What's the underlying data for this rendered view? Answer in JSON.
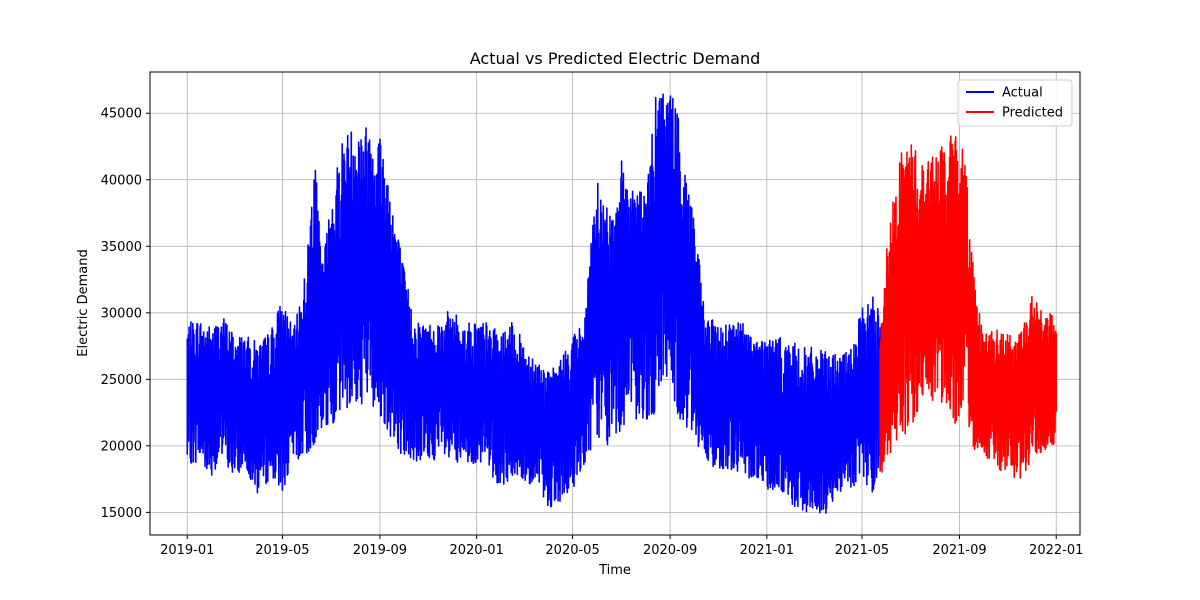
{
  "chart_data": {
    "type": "line",
    "title": "Actual vs Predicted Electric Demand",
    "xlabel": "Time",
    "ylabel": "Electric Demand",
    "xlim": [
      "2018-11-15",
      "2022-01-31"
    ],
    "ylim": [
      13300,
      48100
    ],
    "grid": true,
    "legend_position": "top-right",
    "x_ticks": [
      "2019-01",
      "2019-05",
      "2019-09",
      "2020-01",
      "2020-05",
      "2020-09",
      "2021-01",
      "2021-05",
      "2021-09",
      "2022-01"
    ],
    "y_ticks": [
      15000,
      20000,
      25000,
      30000,
      35000,
      40000,
      45000
    ],
    "series": [
      {
        "name": "Actual",
        "color": "#0000ff",
        "x": [
          "2019-01-01",
          "2019-01-15",
          "2019-02-01",
          "2019-02-15",
          "2019-03-01",
          "2019-03-15",
          "2019-04-01",
          "2019-04-15",
          "2019-05-01",
          "2019-05-15",
          "2019-06-01",
          "2019-06-10",
          "2019-06-20",
          "2019-07-01",
          "2019-07-15",
          "2019-08-01",
          "2019-08-15",
          "2019-09-01",
          "2019-09-15",
          "2019-10-01",
          "2019-10-15",
          "2019-11-01",
          "2019-11-15",
          "2019-12-01",
          "2019-12-15",
          "2020-01-01",
          "2020-01-15",
          "2020-02-01",
          "2020-02-15",
          "2020-03-01",
          "2020-03-15",
          "2020-04-01",
          "2020-04-15",
          "2020-05-01",
          "2020-05-15",
          "2020-06-01",
          "2020-06-15",
          "2020-07-01",
          "2020-07-15",
          "2020-08-01",
          "2020-08-15",
          "2020-08-25",
          "2020-09-05",
          "2020-09-15",
          "2020-10-01",
          "2020-10-15",
          "2020-11-01",
          "2020-11-15",
          "2020-12-01",
          "2020-12-15",
          "2021-01-01",
          "2021-01-15",
          "2021-02-01",
          "2021-02-15",
          "2021-03-01",
          "2021-03-15",
          "2021-04-01",
          "2021-04-15",
          "2021-05-01",
          "2021-05-15",
          "2021-05-24"
        ],
        "y_max": [
          29200,
          29600,
          29000,
          29800,
          28500,
          28300,
          27800,
          28600,
          31200,
          28600,
          34000,
          42600,
          33500,
          38500,
          43200,
          44300,
          44200,
          43900,
          39500,
          33500,
          29500,
          29300,
          29500,
          30400,
          29200,
          29500,
          29300,
          28400,
          29300,
          27800,
          26800,
          25500,
          26500,
          28400,
          29300,
          40200,
          37600,
          41600,
          40000,
          39000,
          46800,
          47100,
          46900,
          43300,
          37700,
          29800,
          29200,
          29500,
          29400,
          28300,
          28200,
          28200,
          27900,
          27400,
          27400,
          27100,
          26900,
          27100,
          30300,
          31400,
          30300
        ],
        "y_min": [
          18600,
          18800,
          17800,
          19000,
          17600,
          18400,
          16200,
          17600,
          16600,
          18800,
          19300,
          20100,
          21100,
          21400,
          22900,
          22700,
          23500,
          22300,
          20600,
          19100,
          18800,
          18900,
          19000,
          18500,
          18300,
          18800,
          18000,
          16900,
          17600,
          17000,
          17000,
          15400,
          15300,
          16700,
          18600,
          20700,
          20000,
          21200,
          21800,
          22000,
          22000,
          25800,
          23200,
          21800,
          20800,
          18700,
          18300,
          18300,
          17600,
          17600,
          16700,
          16700,
          15500,
          15000,
          15000,
          14700,
          16600,
          16400,
          17700,
          16000,
          18500
        ]
      },
      {
        "name": "Predicted",
        "color": "#ff0000",
        "x": [
          "2021-05-24",
          "2021-06-01",
          "2021-06-15",
          "2021-07-01",
          "2021-07-15",
          "2021-08-01",
          "2021-08-15",
          "2021-09-01",
          "2021-09-10",
          "2021-09-20",
          "2021-10-01",
          "2021-10-15",
          "2021-11-01",
          "2021-11-15",
          "2021-12-01",
          "2021-12-15",
          "2022-01-01"
        ],
        "y_max": [
          30300,
          34800,
          41500,
          43300,
          41400,
          42200,
          42900,
          44000,
          40800,
          32500,
          28600,
          28800,
          28500,
          28300,
          31500,
          30100,
          29800
        ],
        "y_min": [
          17800,
          18400,
          20200,
          21300,
          23000,
          23300,
          23200,
          21000,
          21900,
          19600,
          19300,
          18400,
          17800,
          17200,
          19000,
          19400,
          20300
        ]
      }
    ]
  }
}
